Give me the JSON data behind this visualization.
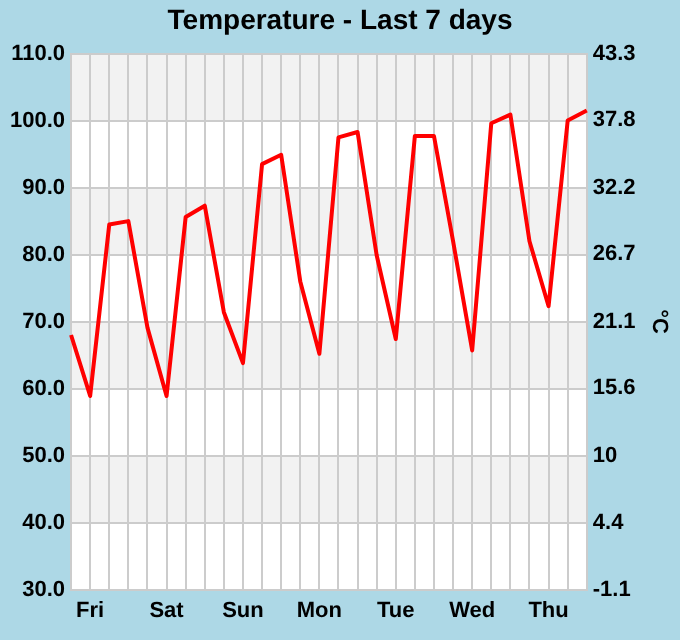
{
  "chart_data": {
    "type": "line",
    "title": "Temperature - Last 7 days",
    "y2label": "°C",
    "categories": [
      null,
      "Fri",
      null,
      null,
      null,
      "Sat",
      null,
      null,
      null,
      "Sun",
      null,
      null,
      null,
      "Mon",
      null,
      null,
      null,
      "Tue",
      null,
      null,
      null,
      "Wed",
      null,
      null,
      null,
      "Thu",
      null,
      null
    ],
    "series": [
      {
        "color": "#ff0000",
        "values": [
          68.0,
          58.9,
          84.5,
          85.0,
          69.1,
          58.9,
          85.6,
          87.3,
          71.4,
          63.8,
          93.5,
          94.9,
          76.0,
          65.2,
          97.5,
          98.3,
          79.9,
          67.4,
          97.7,
          97.7,
          82.0,
          65.7,
          99.6,
          100.9,
          82.0,
          72.3,
          100.0,
          101.5
        ]
      }
    ],
    "yticks": [
      {
        "value": 30,
        "label": "30.0"
      },
      {
        "value": 40,
        "label": "40.0"
      },
      {
        "value": 50,
        "label": "50.0"
      },
      {
        "value": 60,
        "label": "60.0"
      },
      {
        "value": 70,
        "label": "70.0"
      },
      {
        "value": 80,
        "label": "80.0"
      },
      {
        "value": 90,
        "label": "90.0"
      },
      {
        "value": 100,
        "label": "100.0"
      },
      {
        "value": 110,
        "label": "110.0"
      }
    ],
    "ylim": [
      30,
      110
    ],
    "y2lim": [
      -1.1,
      43.3
    ],
    "y2ticks": [
      -1.1,
      4.4,
      10,
      15.6,
      21.1,
      26.7,
      32.2,
      37.8,
      43.3
    ],
    "grid": true,
    "legend": false,
    "marker": "none",
    "line_style": "solid"
  }
}
